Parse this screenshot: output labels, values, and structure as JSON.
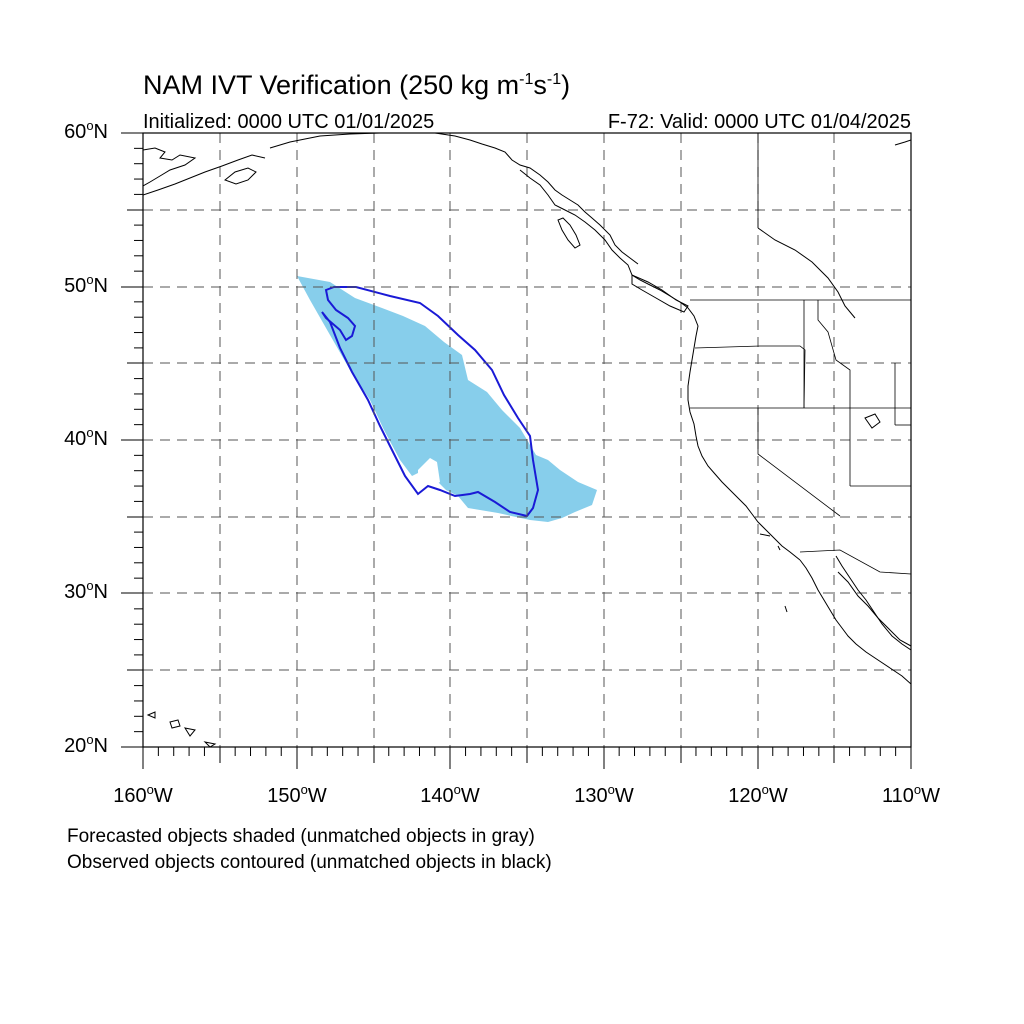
{
  "title": {
    "main_prefix": "NAM IVT Verification (250 kg m",
    "exp1": "-1",
    "mid": "s",
    "exp2": "-1",
    "suffix": ")"
  },
  "subtitle_left": "Initialized: 0000 UTC 01/01/2025",
  "subtitle_right": "F-72: Valid: 0000 UTC 01/04/2025",
  "lat_labels": [
    {
      "num": "60",
      "deg": "o",
      "hem": "N"
    },
    {
      "num": "50",
      "deg": "o",
      "hem": "N"
    },
    {
      "num": "40",
      "deg": "o",
      "hem": "N"
    },
    {
      "num": "30",
      "deg": "o",
      "hem": "N"
    },
    {
      "num": "20",
      "deg": "o",
      "hem": "N"
    }
  ],
  "lon_labels": [
    {
      "num": "160",
      "deg": "o",
      "hem": "W"
    },
    {
      "num": "150",
      "deg": "o",
      "hem": "W"
    },
    {
      "num": "140",
      "deg": "o",
      "hem": "W"
    },
    {
      "num": "130",
      "deg": "o",
      "hem": "W"
    },
    {
      "num": "120",
      "deg": "o",
      "hem": "W"
    },
    {
      "num": "110",
      "deg": "o",
      "hem": "W"
    }
  ],
  "notes": [
    "Forecasted objects shaded (unmatched objects in gray)",
    "Observed objects contoured (unmatched objects in black)"
  ],
  "colors": {
    "forecast_fill": "#87ceeb",
    "observed_contour": "#1a1ad6",
    "coastline": "#000000",
    "grid": "#555555"
  }
}
